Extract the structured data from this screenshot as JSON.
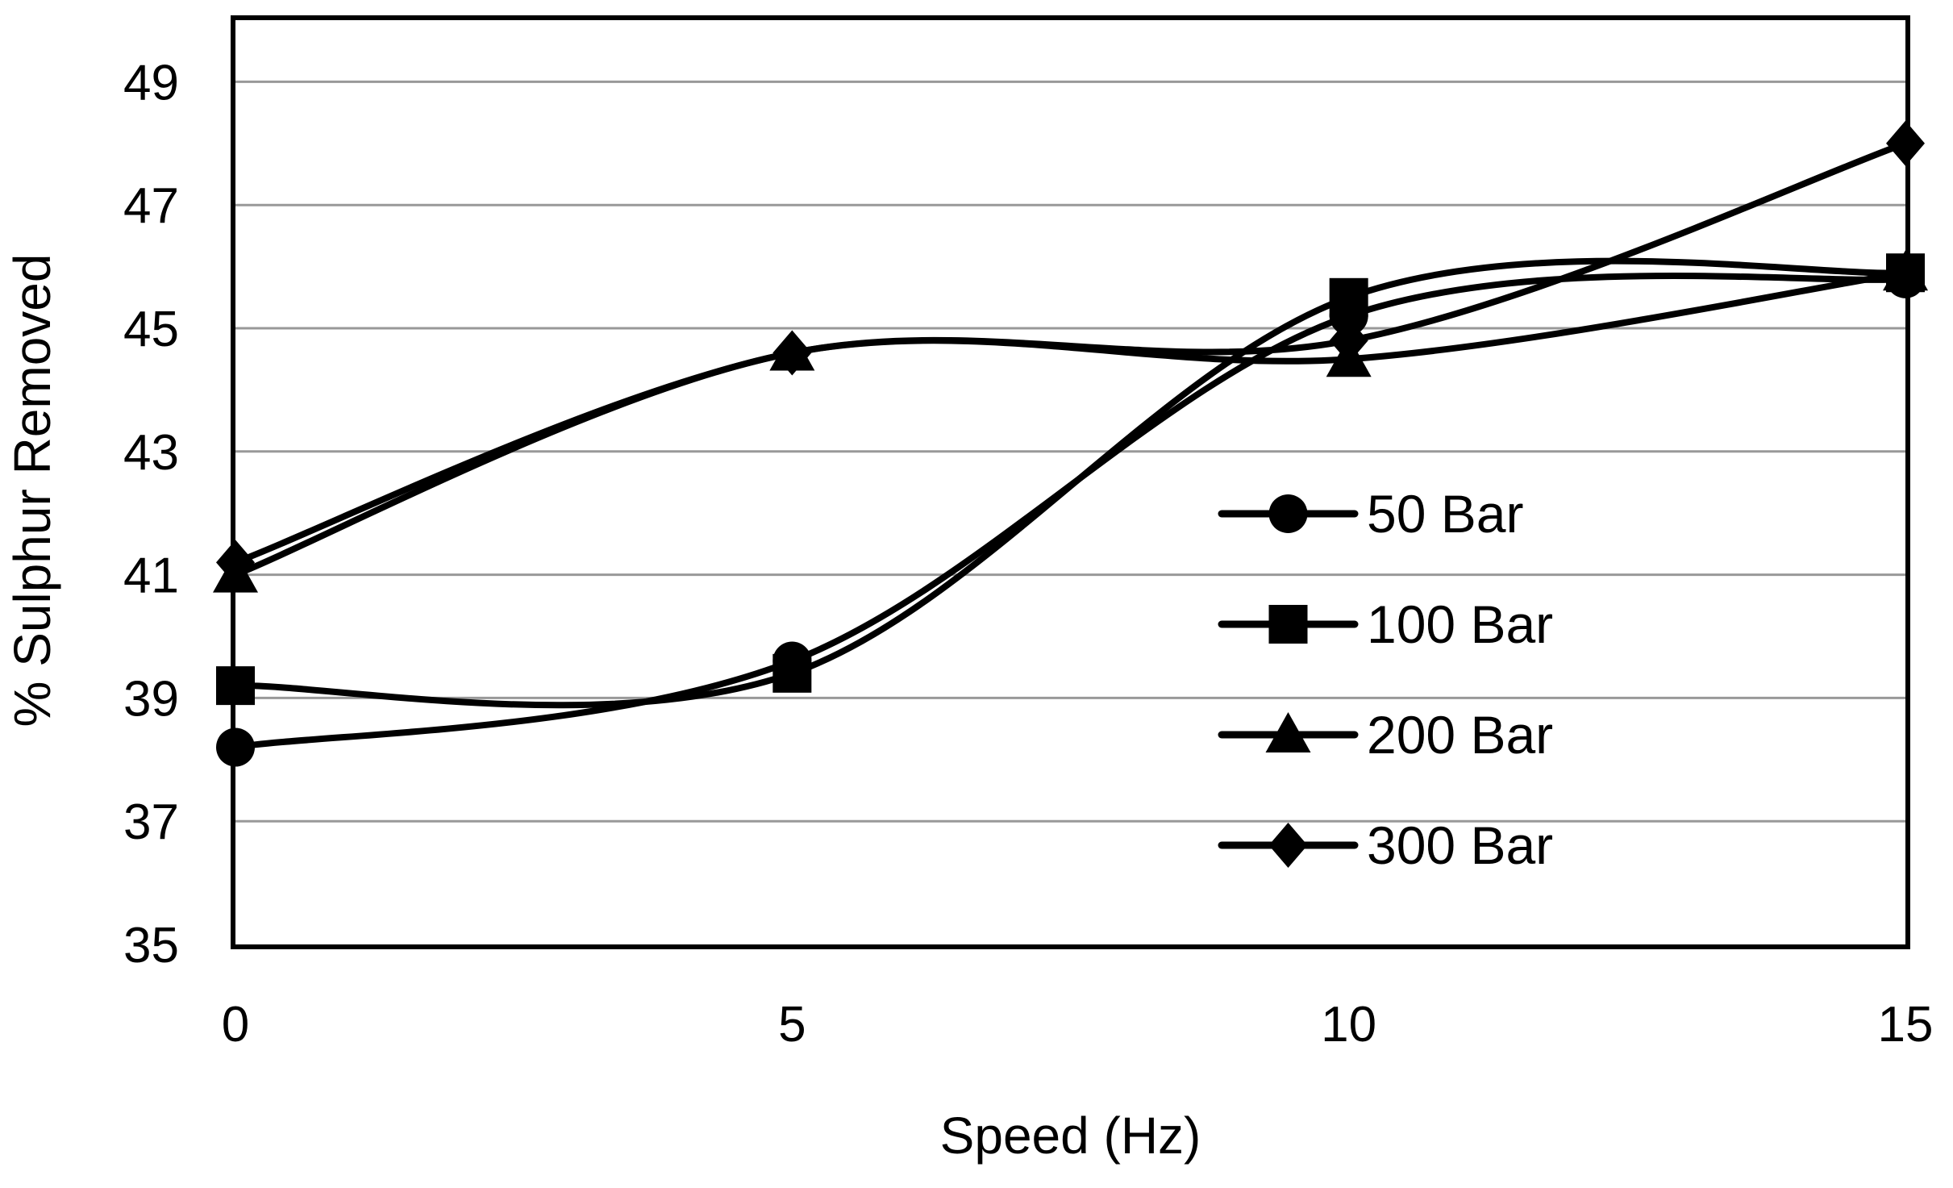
{
  "chart_data": {
    "type": "line",
    "smooth": true,
    "title": "",
    "xlabel": "Speed (Hz)",
    "ylabel": "% Sulphur Removed",
    "x": [
      0,
      5,
      10,
      15
    ],
    "xlim": [
      0,
      15
    ],
    "ylim": [
      35,
      50
    ],
    "xticks": [
      0,
      5,
      10,
      15
    ],
    "yticks": [
      35,
      37,
      39,
      41,
      43,
      45,
      47,
      49
    ],
    "grid": true,
    "legend_position": "center-right",
    "series": [
      {
        "name": "50 Bar",
        "marker": "circle",
        "values": [
          38.2,
          39.6,
          45.2,
          45.8
        ]
      },
      {
        "name": "100 Bar",
        "marker": "square",
        "values": [
          39.2,
          39.4,
          45.5,
          45.9
        ]
      },
      {
        "name": "200 Bar",
        "marker": "triangle",
        "values": [
          41.0,
          44.6,
          44.5,
          45.9
        ]
      },
      {
        "name": "300 Bar",
        "marker": "diamond",
        "values": [
          41.2,
          44.6,
          44.8,
          48.0
        ]
      }
    ],
    "colors": {
      "line": "#000000",
      "grid": "#999999",
      "background": "#ffffff"
    }
  }
}
